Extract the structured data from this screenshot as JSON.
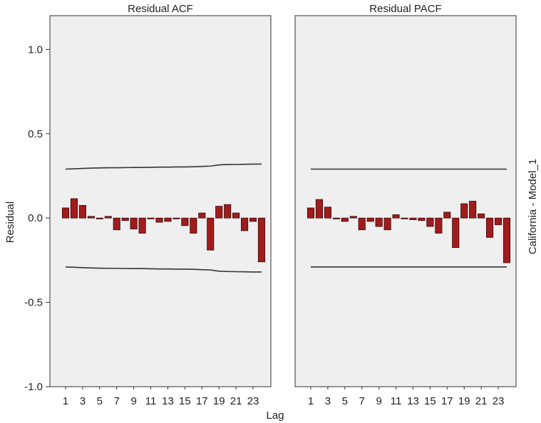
{
  "figure": {
    "ylabel": "Residual",
    "xlabel": "Lag",
    "side_label": "California - Model_1"
  },
  "chart_data": [
    {
      "type": "bar",
      "title": "Residual ACF",
      "x": [
        1,
        2,
        3,
        4,
        5,
        6,
        7,
        8,
        9,
        10,
        11,
        12,
        13,
        14,
        15,
        16,
        17,
        18,
        19,
        20,
        21,
        22,
        23,
        24
      ],
      "values": [
        0.06,
        0.115,
        0.075,
        0.01,
        -0.005,
        0.01,
        -0.07,
        -0.015,
        -0.065,
        -0.09,
        0.0,
        -0.025,
        -0.02,
        0.0,
        -0.045,
        -0.09,
        0.03,
        -0.19,
        0.07,
        0.08,
        0.03,
        -0.075,
        -0.02,
        -0.26
      ],
      "upper_limit": [
        0.29,
        0.292,
        0.294,
        0.296,
        0.297,
        0.298,
        0.298,
        0.299,
        0.3,
        0.3,
        0.301,
        0.302,
        0.302,
        0.303,
        0.303,
        0.304,
        0.306,
        0.308,
        0.315,
        0.317,
        0.318,
        0.319,
        0.32,
        0.32
      ],
      "lower_limit": [
        -0.29,
        -0.292,
        -0.294,
        -0.296,
        -0.297,
        -0.298,
        -0.298,
        -0.299,
        -0.3,
        -0.3,
        -0.301,
        -0.302,
        -0.302,
        -0.303,
        -0.303,
        -0.304,
        -0.306,
        -0.308,
        -0.315,
        -0.317,
        -0.318,
        -0.319,
        -0.32,
        -0.32
      ],
      "ylim": [
        -1.0,
        1.2
      ],
      "yticks": [
        -1.0,
        -0.5,
        0.0,
        0.5,
        1.0
      ],
      "ytick_labels": [
        "-1.0",
        "-0.5",
        "0.0",
        "0.5",
        "1.0"
      ],
      "xtick_labels": [
        "1",
        "3",
        "5",
        "7",
        "9",
        "11",
        "13",
        "15",
        "17",
        "19",
        "21",
        "23"
      ],
      "grid": false,
      "bar_color": "#a01c1c"
    },
    {
      "type": "bar",
      "title": "Residual PACF",
      "x": [
        1,
        2,
        3,
        4,
        5,
        6,
        7,
        8,
        9,
        10,
        11,
        12,
        13,
        14,
        15,
        16,
        17,
        18,
        19,
        20,
        21,
        22,
        23,
        24
      ],
      "values": [
        0.06,
        0.11,
        0.065,
        -0.005,
        -0.02,
        0.01,
        -0.07,
        -0.02,
        -0.05,
        -0.07,
        0.02,
        0.0,
        -0.01,
        -0.015,
        -0.05,
        -0.09,
        0.035,
        -0.175,
        0.085,
        0.1,
        0.025,
        -0.115,
        -0.04,
        -0.265
      ],
      "upper_limit": [
        0.29,
        0.29,
        0.29,
        0.29,
        0.29,
        0.29,
        0.29,
        0.29,
        0.29,
        0.29,
        0.29,
        0.29,
        0.29,
        0.29,
        0.29,
        0.29,
        0.29,
        0.29,
        0.29,
        0.29,
        0.29,
        0.29,
        0.29,
        0.29
      ],
      "lower_limit": [
        -0.29,
        -0.29,
        -0.29,
        -0.29,
        -0.29,
        -0.29,
        -0.29,
        -0.29,
        -0.29,
        -0.29,
        -0.29,
        -0.29,
        -0.29,
        -0.29,
        -0.29,
        -0.29,
        -0.29,
        -0.29,
        -0.29,
        -0.29,
        -0.29,
        -0.29,
        -0.29,
        -0.29
      ],
      "ylim": [
        -1.0,
        1.2
      ],
      "xtick_labels": [
        "1",
        "3",
        "5",
        "7",
        "9",
        "11",
        "13",
        "15",
        "17",
        "19",
        "21",
        "23"
      ],
      "grid": false,
      "bar_color": "#a01c1c"
    }
  ]
}
